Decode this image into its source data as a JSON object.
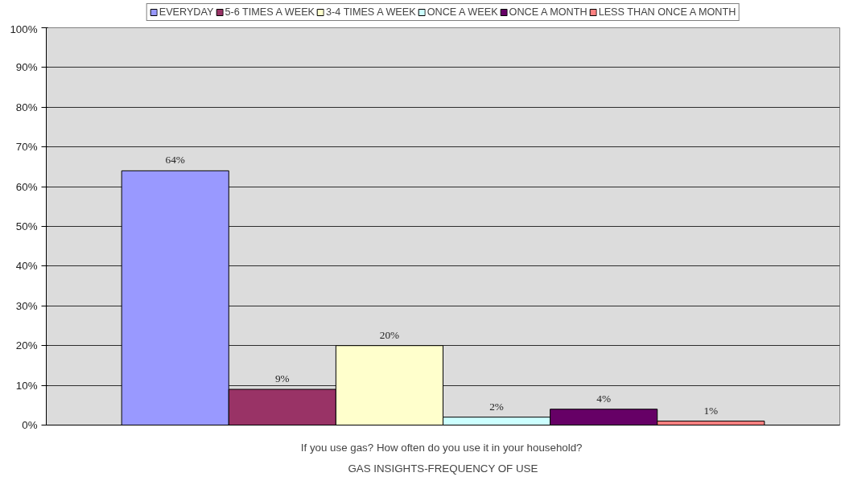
{
  "chart_data": {
    "type": "bar",
    "categories": [
      "If you use gas?  How often do you use it in your household?"
    ],
    "xlabel": "GAS INSIGHTS-FREQUENCY OF USE",
    "series": [
      {
        "name": "EVERYDAY",
        "color": "#9999ff",
        "values": [
          64
        ],
        "value_labels": [
          "64%"
        ]
      },
      {
        "name": "5-6 TIMES A WEEK",
        "color": "#993366",
        "values": [
          9
        ],
        "value_labels": [
          "9%"
        ]
      },
      {
        "name": "3-4 TIMES A WEEK",
        "color": "#ffffcc",
        "values": [
          20
        ],
        "value_labels": [
          "20%"
        ]
      },
      {
        "name": "ONCE A WEEK",
        "color": "#ccffff",
        "values": [
          2
        ],
        "value_labels": [
          "2%"
        ]
      },
      {
        "name": "ONCE A MONTH",
        "color": "#660066",
        "values": [
          4
        ],
        "value_labels": [
          "4%"
        ]
      },
      {
        "name": "LESS THAN ONCE A MONTH",
        "color": "#ff8080",
        "values": [
          1
        ],
        "value_labels": [
          "1%"
        ]
      }
    ],
    "ylim": [
      0,
      100
    ],
    "yticks": [
      {
        "value": 0,
        "label": "0%"
      },
      {
        "value": 10,
        "label": "10%"
      },
      {
        "value": 20,
        "label": "20%"
      },
      {
        "value": 30,
        "label": "30%"
      },
      {
        "value": 40,
        "label": "40%"
      },
      {
        "value": 50,
        "label": "50%"
      },
      {
        "value": 60,
        "label": "60%"
      },
      {
        "value": 70,
        "label": "70%"
      },
      {
        "value": 80,
        "label": "80%"
      },
      {
        "value": 90,
        "label": "90%"
      },
      {
        "value": 100,
        "label": "100%"
      }
    ],
    "grid": "y",
    "legend": "top"
  }
}
